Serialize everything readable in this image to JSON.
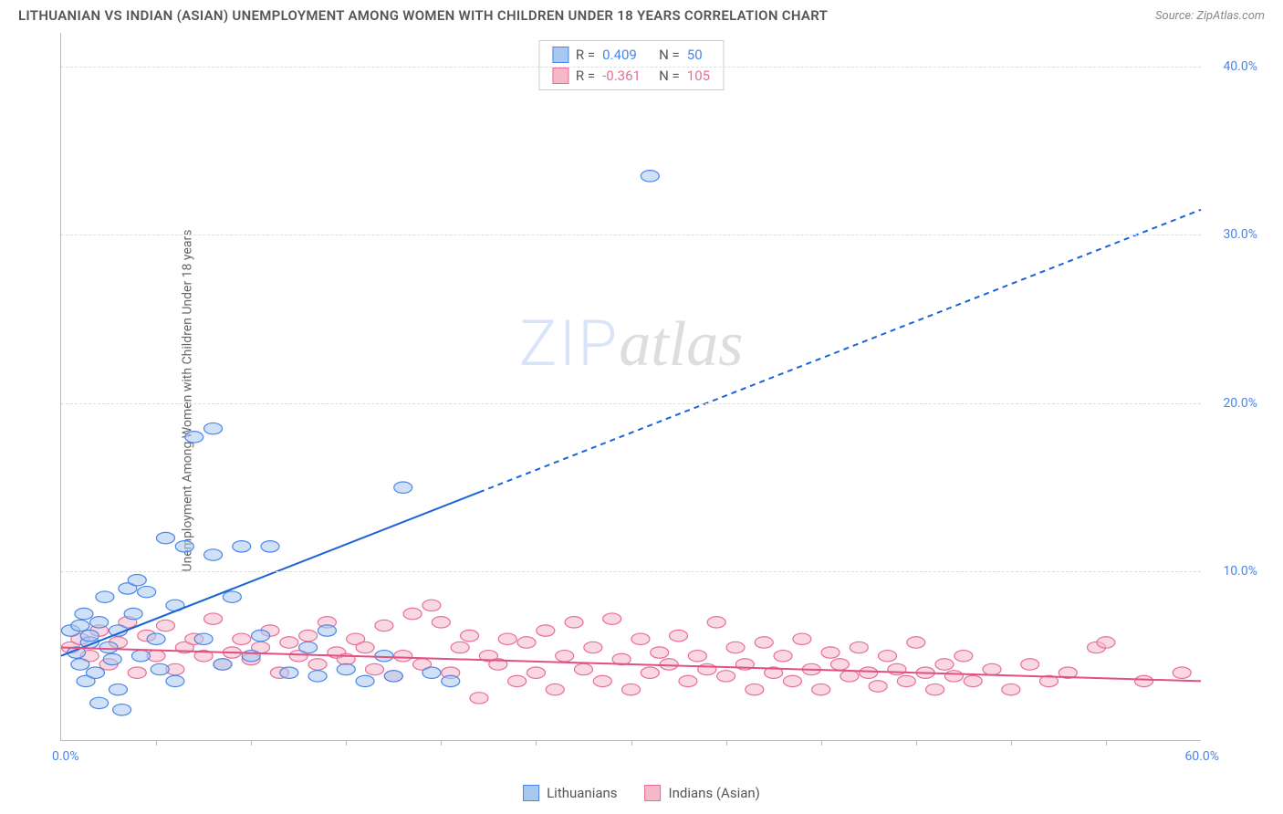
{
  "title": "LITHUANIAN VS INDIAN (ASIAN) UNEMPLOYMENT AMONG WOMEN WITH CHILDREN UNDER 18 YEARS CORRELATION CHART",
  "source": "Source: ZipAtlas.com",
  "ylabel": "Unemployment Among Women with Children Under 18 years",
  "watermark_zip": "ZIP",
  "watermark_atlas": "atlas",
  "chart": {
    "type": "scatter",
    "xlim": [
      0,
      60
    ],
    "ylim": [
      0,
      42
    ],
    "x_origin_label": "0.0%",
    "x_max_label": "60.0%",
    "y_ticks": [
      10.0,
      20.0,
      30.0,
      40.0
    ],
    "y_tick_labels": [
      "10.0%",
      "20.0%",
      "30.0%",
      "40.0%"
    ],
    "x_minor_ticks": [
      5,
      10,
      15,
      20,
      25,
      30,
      35,
      40,
      45,
      50,
      55
    ],
    "background_color": "#ffffff",
    "grid_color": "#dddddd",
    "axis_color": "#bbbbbb",
    "x_tick_color": "#4a86e8",
    "y_tick_color": "#4a86e8",
    "series": [
      {
        "name": "Lithuanians",
        "color_fill": "#a9c8f0",
        "color_stroke": "#4a86e8",
        "marker_radius": 8,
        "fill_opacity": 0.55,
        "R_label": "R =",
        "R": "0.409",
        "N_label": "N =",
        "N": "50",
        "stat_color": "#4a86e8",
        "trend": {
          "x1": 0,
          "y1": 5.0,
          "x2": 60,
          "y2": 31.5,
          "solid_until_x": 22,
          "color": "#1b64d8",
          "width": 2,
          "dash": "6,5"
        },
        "points": [
          [
            0.5,
            6.5
          ],
          [
            0.8,
            5.2
          ],
          [
            1.0,
            6.8
          ],
          [
            1.0,
            4.5
          ],
          [
            1.2,
            7.5
          ],
          [
            1.3,
            3.5
          ],
          [
            1.5,
            5.8
          ],
          [
            1.5,
            6.2
          ],
          [
            1.8,
            4.0
          ],
          [
            2.0,
            7.0
          ],
          [
            2.0,
            2.2
          ],
          [
            2.3,
            8.5
          ],
          [
            2.5,
            5.5
          ],
          [
            2.7,
            4.8
          ],
          [
            3.0,
            6.5
          ],
          [
            3.0,
            3.0
          ],
          [
            3.2,
            1.8
          ],
          [
            3.5,
            9.0
          ],
          [
            3.8,
            7.5
          ],
          [
            4.0,
            9.5
          ],
          [
            4.2,
            5.0
          ],
          [
            4.5,
            8.8
          ],
          [
            5.0,
            6.0
          ],
          [
            5.2,
            4.2
          ],
          [
            5.5,
            12.0
          ],
          [
            6.0,
            8.0
          ],
          [
            6.0,
            3.5
          ],
          [
            6.5,
            11.5
          ],
          [
            7.0,
            18.0
          ],
          [
            7.5,
            6.0
          ],
          [
            8.0,
            11.0
          ],
          [
            8.0,
            18.5
          ],
          [
            8.5,
            4.5
          ],
          [
            9.0,
            8.5
          ],
          [
            9.5,
            11.5
          ],
          [
            10.0,
            5.0
          ],
          [
            10.5,
            6.2
          ],
          [
            11.0,
            11.5
          ],
          [
            12.0,
            4.0
          ],
          [
            13.0,
            5.5
          ],
          [
            13.5,
            3.8
          ],
          [
            14.0,
            6.5
          ],
          [
            15.0,
            4.2
          ],
          [
            16.0,
            3.5
          ],
          [
            17.0,
            5.0
          ],
          [
            17.5,
            3.8
          ],
          [
            18.0,
            15.0
          ],
          [
            19.5,
            4.0
          ],
          [
            20.5,
            3.5
          ],
          [
            31.0,
            33.5
          ]
        ]
      },
      {
        "name": "Indians (Asian)",
        "color_fill": "#f5b8c8",
        "color_stroke": "#e86e96",
        "marker_radius": 8,
        "fill_opacity": 0.55,
        "R_label": "R =",
        "R": "-0.361",
        "N_label": "N =",
        "N": "105",
        "stat_color": "#e86e96",
        "trend": {
          "x1": 0,
          "y1": 5.5,
          "x2": 60,
          "y2": 3.5,
          "solid_until_x": 60,
          "color": "#e05080",
          "width": 2,
          "dash": ""
        },
        "points": [
          [
            0.5,
            5.5
          ],
          [
            1.0,
            6.0
          ],
          [
            1.5,
            5.0
          ],
          [
            2.0,
            6.5
          ],
          [
            2.5,
            4.5
          ],
          [
            3.0,
            5.8
          ],
          [
            3.5,
            7.0
          ],
          [
            4.0,
            4.0
          ],
          [
            4.5,
            6.2
          ],
          [
            5.0,
            5.0
          ],
          [
            5.5,
            6.8
          ],
          [
            6.0,
            4.2
          ],
          [
            6.5,
            5.5
          ],
          [
            7.0,
            6.0
          ],
          [
            7.5,
            5.0
          ],
          [
            8.0,
            7.2
          ],
          [
            8.5,
            4.5
          ],
          [
            9.0,
            5.2
          ],
          [
            9.5,
            6.0
          ],
          [
            10.0,
            4.8
          ],
          [
            10.5,
            5.5
          ],
          [
            11.0,
            6.5
          ],
          [
            11.5,
            4.0
          ],
          [
            12.0,
            5.8
          ],
          [
            12.5,
            5.0
          ],
          [
            13.0,
            6.2
          ],
          [
            13.5,
            4.5
          ],
          [
            14.0,
            7.0
          ],
          [
            14.5,
            5.2
          ],
          [
            15.0,
            4.8
          ],
          [
            15.5,
            6.0
          ],
          [
            16.0,
            5.5
          ],
          [
            16.5,
            4.2
          ],
          [
            17.0,
            6.8
          ],
          [
            17.5,
            3.8
          ],
          [
            18.0,
            5.0
          ],
          [
            18.5,
            7.5
          ],
          [
            19.0,
            4.5
          ],
          [
            19.5,
            8.0
          ],
          [
            20.0,
            7.0
          ],
          [
            20.5,
            4.0
          ],
          [
            21.0,
            5.5
          ],
          [
            21.5,
            6.2
          ],
          [
            22.0,
            2.5
          ],
          [
            22.5,
            5.0
          ],
          [
            23.0,
            4.5
          ],
          [
            23.5,
            6.0
          ],
          [
            24.0,
            3.5
          ],
          [
            24.5,
            5.8
          ],
          [
            25.0,
            4.0
          ],
          [
            25.5,
            6.5
          ],
          [
            26.0,
            3.0
          ],
          [
            26.5,
            5.0
          ],
          [
            27.0,
            7.0
          ],
          [
            27.5,
            4.2
          ],
          [
            28.0,
            5.5
          ],
          [
            28.5,
            3.5
          ],
          [
            29.0,
            7.2
          ],
          [
            29.5,
            4.8
          ],
          [
            30.0,
            3.0
          ],
          [
            30.5,
            6.0
          ],
          [
            31.0,
            4.0
          ],
          [
            31.5,
            5.2
          ],
          [
            32.0,
            4.5
          ],
          [
            32.5,
            6.2
          ],
          [
            33.0,
            3.5
          ],
          [
            33.5,
            5.0
          ],
          [
            34.0,
            4.2
          ],
          [
            34.5,
            7.0
          ],
          [
            35.0,
            3.8
          ],
          [
            35.5,
            5.5
          ],
          [
            36.0,
            4.5
          ],
          [
            36.5,
            3.0
          ],
          [
            37.0,
            5.8
          ],
          [
            37.5,
            4.0
          ],
          [
            38.0,
            5.0
          ],
          [
            38.5,
            3.5
          ],
          [
            39.0,
            6.0
          ],
          [
            39.5,
            4.2
          ],
          [
            40.0,
            3.0
          ],
          [
            40.5,
            5.2
          ],
          [
            41.0,
            4.5
          ],
          [
            41.5,
            3.8
          ],
          [
            42.0,
            5.5
          ],
          [
            42.5,
            4.0
          ],
          [
            43.0,
            3.2
          ],
          [
            43.5,
            5.0
          ],
          [
            44.0,
            4.2
          ],
          [
            44.5,
            3.5
          ],
          [
            45.0,
            5.8
          ],
          [
            45.5,
            4.0
          ],
          [
            46.0,
            3.0
          ],
          [
            46.5,
            4.5
          ],
          [
            47.0,
            3.8
          ],
          [
            47.5,
            5.0
          ],
          [
            48.0,
            3.5
          ],
          [
            49.0,
            4.2
          ],
          [
            50.0,
            3.0
          ],
          [
            51.0,
            4.5
          ],
          [
            52.0,
            3.5
          ],
          [
            53.0,
            4.0
          ],
          [
            54.5,
            5.5
          ],
          [
            55.0,
            5.8
          ],
          [
            57.0,
            3.5
          ],
          [
            59.0,
            4.0
          ]
        ]
      }
    ]
  },
  "legend": {
    "items": [
      {
        "label": "Lithuanians",
        "fill": "#a9c8f0",
        "stroke": "#4a86e8"
      },
      {
        "label": "Indians (Asian)",
        "fill": "#f5b8c8",
        "stroke": "#e86e96"
      }
    ]
  }
}
